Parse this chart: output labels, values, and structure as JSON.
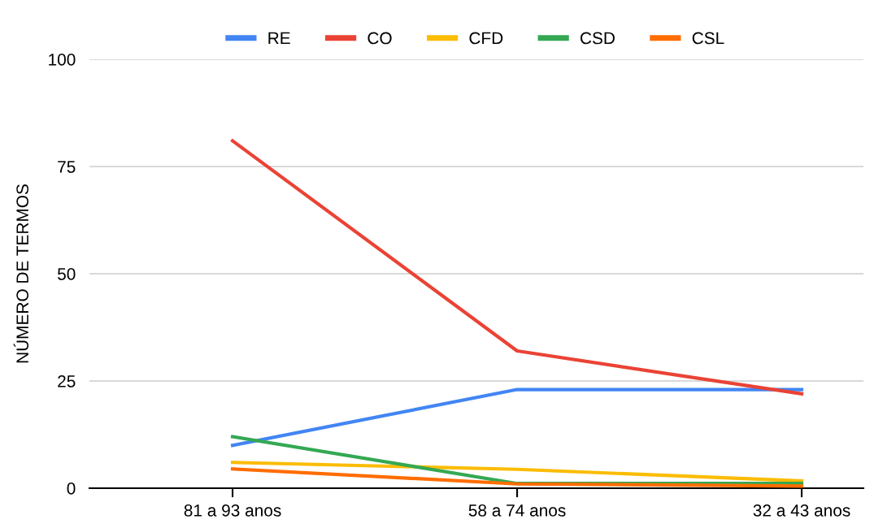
{
  "chart_data": {
    "type": "line",
    "ylabel": "NÚMERO DE TERMOS",
    "categories": [
      "81 a 93 anos",
      "58 a 74 anos",
      "32 a 43 anos"
    ],
    "series": [
      {
        "name": "RE",
        "color": "#4285f4",
        "values": [
          10,
          23,
          23
        ]
      },
      {
        "name": "CO",
        "color": "#ea4335",
        "values": [
          81,
          32,
          22
        ]
      },
      {
        "name": "CFD",
        "color": "#fbbc04",
        "values": [
          6,
          4.4,
          1.7
        ]
      },
      {
        "name": "CSD",
        "color": "#34a853",
        "values": [
          12,
          1.1,
          1.1
        ]
      },
      {
        "name": "CSL",
        "color": "#ff6d01",
        "values": [
          4.5,
          1,
          0.5
        ]
      }
    ],
    "ylim": [
      0,
      100
    ],
    "yticks": [
      0,
      25,
      50,
      75,
      100
    ],
    "grid": "y",
    "legend": "top",
    "marker": "none",
    "line_style": "solid"
  }
}
